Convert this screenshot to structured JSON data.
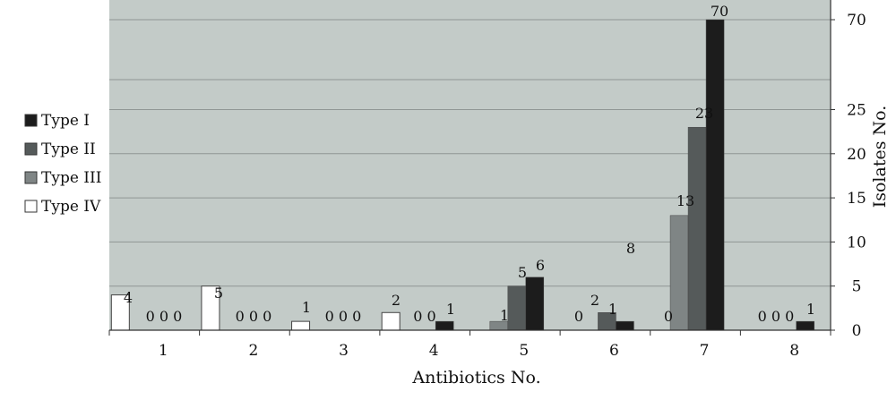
{
  "chart_data": {
    "type": "bar",
    "xlabel": "Antibiotics No.",
    "ylabel": "Isolates No.",
    "categories": [
      "1",
      "2",
      "3",
      "4",
      "5",
      "6",
      "7",
      "8"
    ],
    "y_ticks": [
      "0",
      "5",
      "10",
      "15",
      "20",
      "25",
      "70"
    ],
    "y_scale_note": "broken axis between 25 and 70",
    "legend_position": "left",
    "grid": true,
    "plot_background": "#c3cbc8",
    "series": [
      {
        "name": "Type IV",
        "color": "#ffffff",
        "values": [
          4,
          5,
          1,
          2,
          null,
          null,
          null,
          null
        ]
      },
      {
        "name": "Type III",
        "color": "#7f8585",
        "values": [
          0,
          0,
          0,
          0,
          1,
          0,
          13,
          0
        ]
      },
      {
        "name": "Type II",
        "color": "#555a5a",
        "values": [
          0,
          0,
          0,
          0,
          5,
          2,
          23,
          0
        ]
      },
      {
        "name": "Type I",
        "color": "#1c1c1c",
        "values": [
          0,
          0,
          0,
          1,
          6,
          1,
          70,
          1
        ]
      }
    ],
    "legend_order": [
      "Type I",
      "Type II",
      "Type III",
      "Type IV"
    ],
    "data_labels": [
      {
        "category": "1",
        "text": "4"
      },
      {
        "category": "1",
        "text": "0 0 0"
      },
      {
        "category": "2",
        "text": "5"
      },
      {
        "category": "2",
        "text": "0 0 0"
      },
      {
        "category": "3",
        "text": "1"
      },
      {
        "category": "3",
        "text": "0 0 0"
      },
      {
        "category": "4",
        "text": "2"
      },
      {
        "category": "4",
        "text": "0 0"
      },
      {
        "category": "4",
        "text": "1"
      },
      {
        "category": "5",
        "text": "1"
      },
      {
        "category": "5",
        "text": "5"
      },
      {
        "category": "5",
        "text": "6"
      },
      {
        "category": "6",
        "text": "0"
      },
      {
        "category": "6",
        "text": "2"
      },
      {
        "category": "6",
        "text": "1"
      },
      {
        "category": "6",
        "text": "8"
      },
      {
        "category": "7",
        "text": "0"
      },
      {
        "category": "7",
        "text": "13"
      },
      {
        "category": "7",
        "text": "23"
      },
      {
        "category": "7",
        "text": "70"
      },
      {
        "category": "8",
        "text": "0 0 0"
      },
      {
        "category": "8",
        "text": "1"
      }
    ]
  }
}
